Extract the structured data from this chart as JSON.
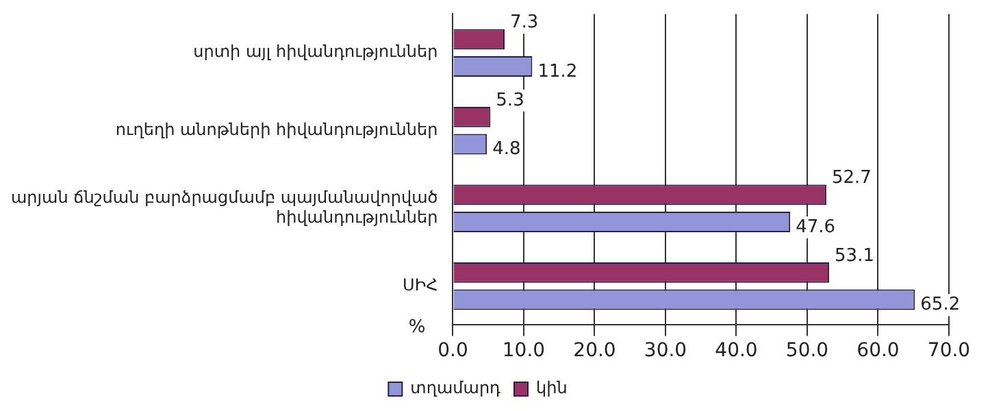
{
  "chart_data": {
    "type": "bar",
    "orientation": "horizontal",
    "xlabel": "%",
    "categories": [
      "սրտի այլ հիվանդություններ",
      "ուղեղի անոթների հիվանդություններ",
      "արյան ճնշման բարձրացմամբ պայմանավորված հիվանդություններ",
      "ՍԻՀ"
    ],
    "series": [
      {
        "name": "տղամարդ",
        "color": "#9296d8",
        "values": [
          11.2,
          4.8,
          47.6,
          65.2
        ]
      },
      {
        "name": "կին",
        "color": "#993366",
        "values": [
          7.3,
          5.3,
          52.7,
          53.1
        ]
      }
    ],
    "xlim": [
      0,
      70
    ],
    "xticks": [
      {
        "value": 0,
        "label": "0.0"
      },
      {
        "value": 10,
        "label": "10.0"
      },
      {
        "value": 20,
        "label": "20.0"
      },
      {
        "value": 30,
        "label": "30.0"
      },
      {
        "value": 40,
        "label": "40.0"
      },
      {
        "value": 50,
        "label": "50.0"
      },
      {
        "value": 60,
        "label": "60.0"
      },
      {
        "value": 70,
        "label": "70.0"
      }
    ],
    "grid": "x",
    "legend": "bottom",
    "data_labels": true
  }
}
